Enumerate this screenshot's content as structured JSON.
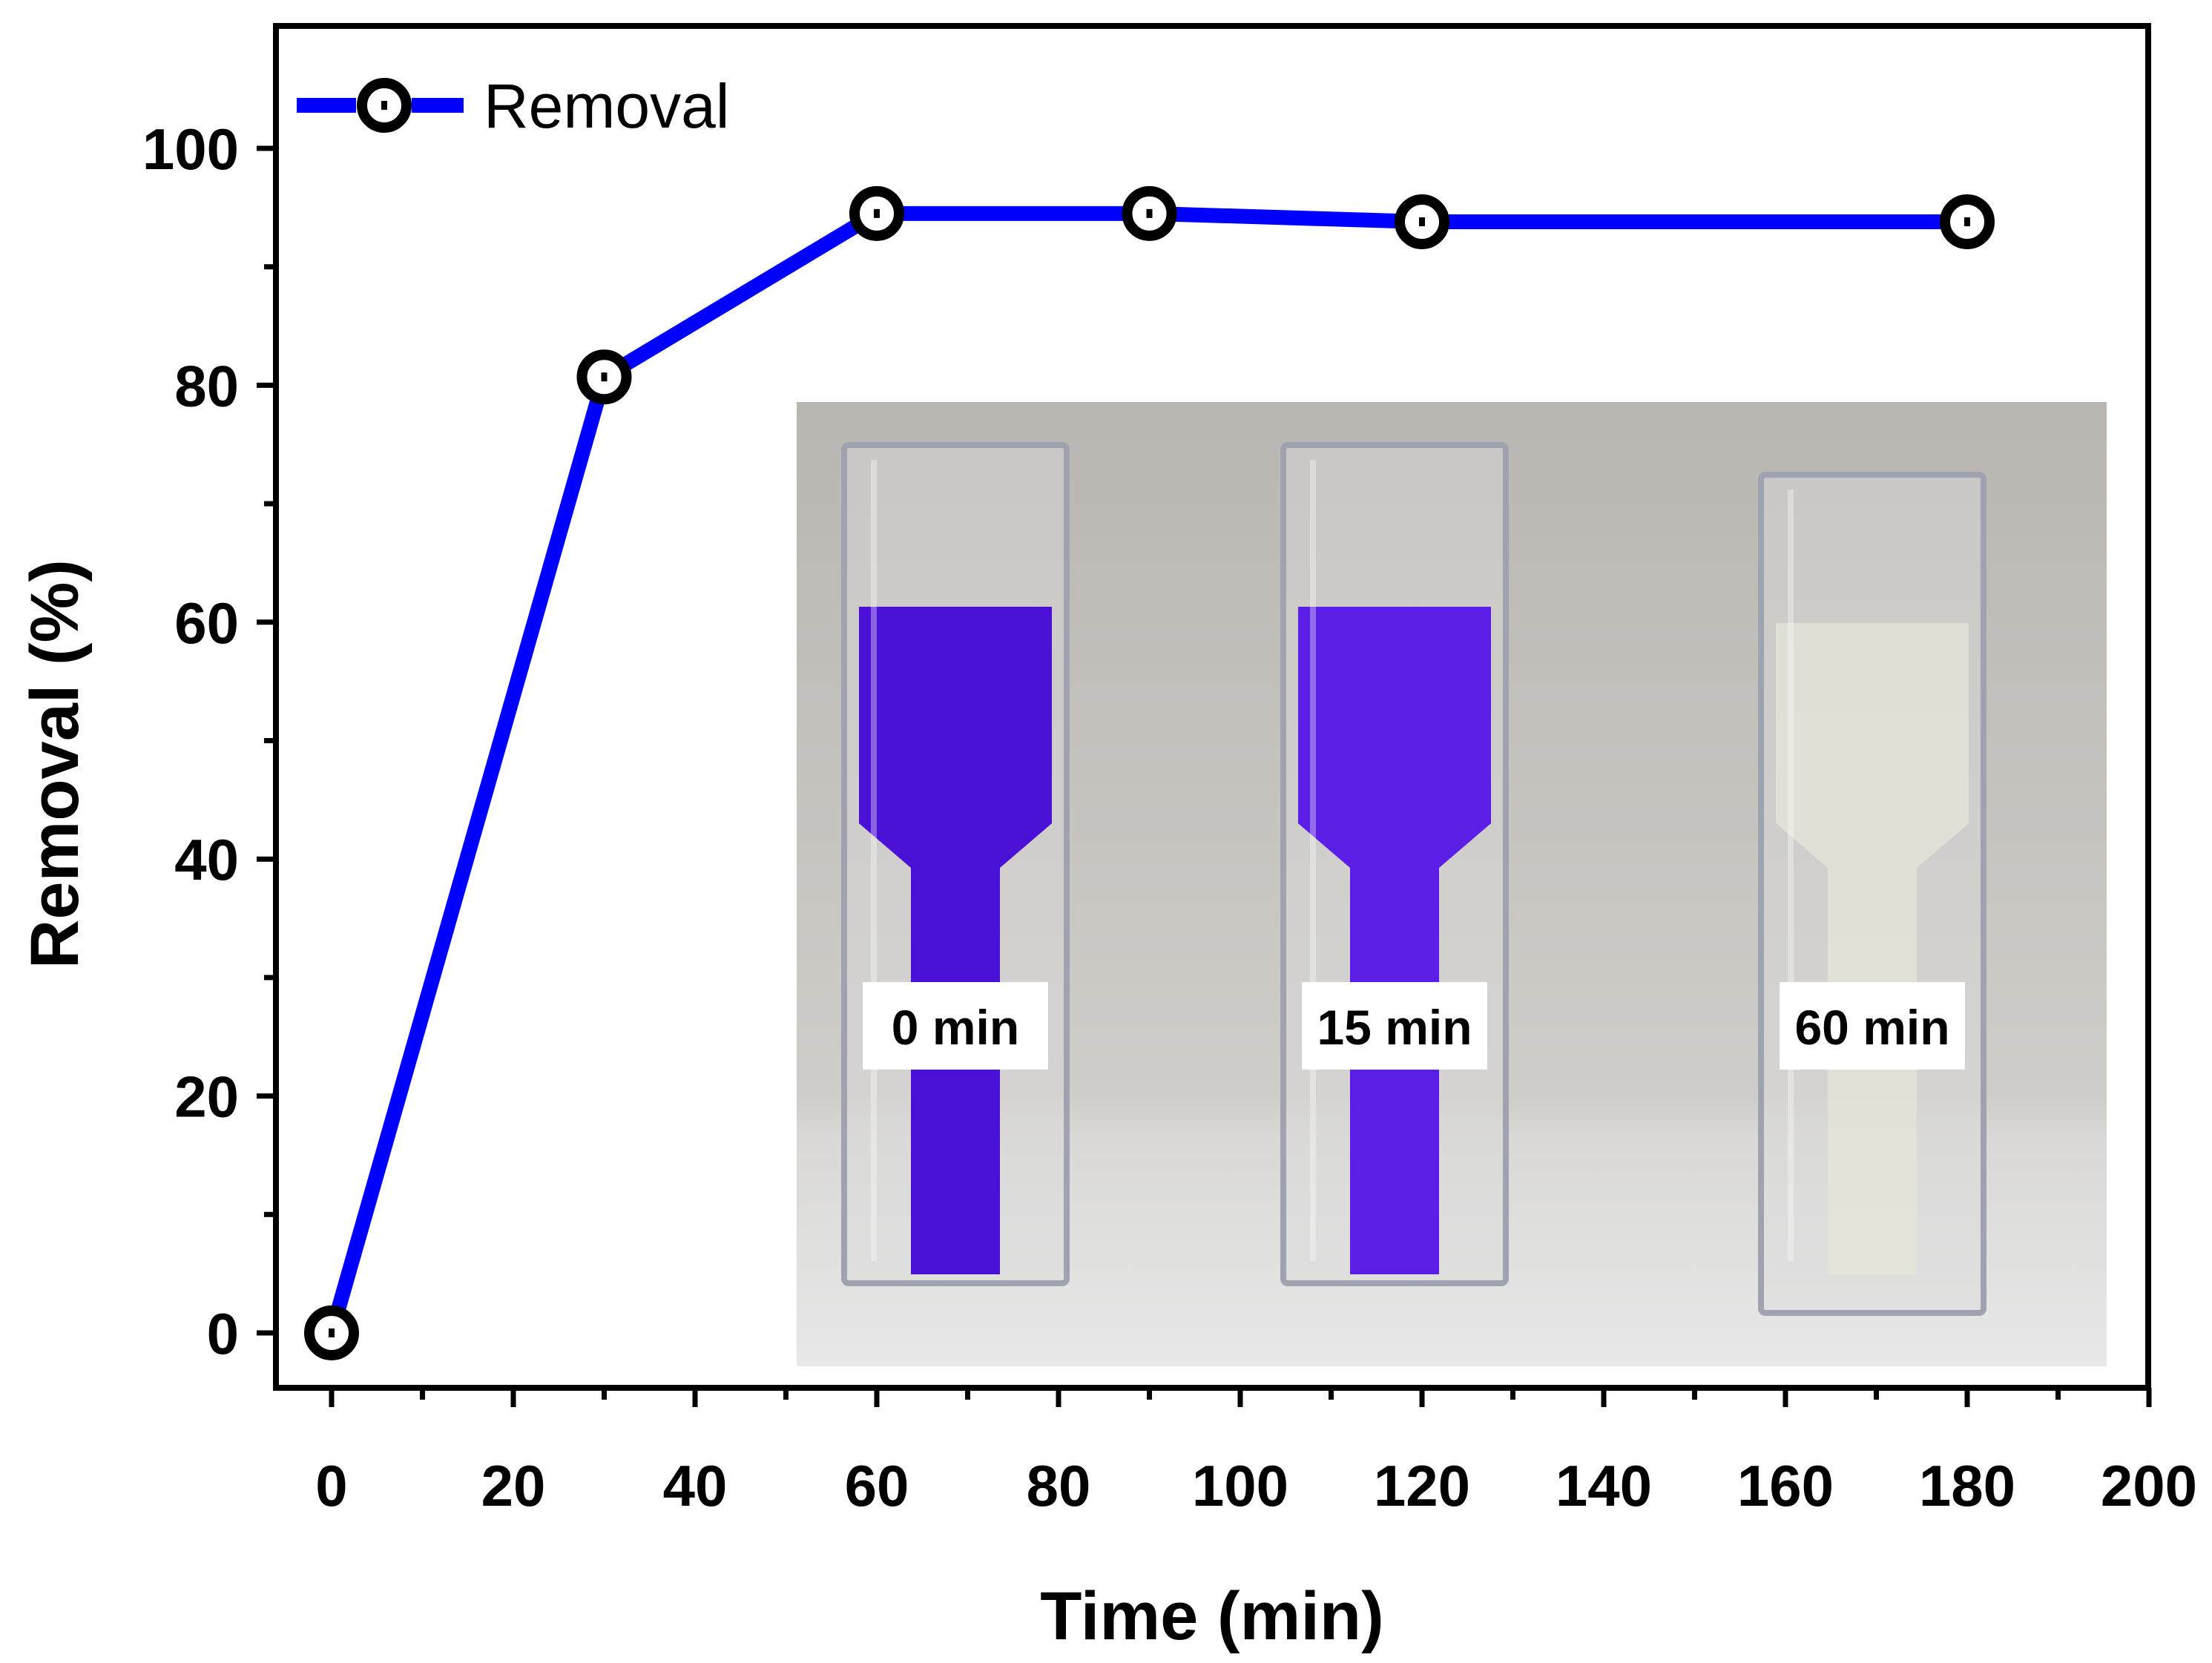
{
  "chart_data": {
    "type": "line",
    "xlabel": "Time (min)",
    "ylabel": "Removal (%)",
    "xlim": [
      -5,
      200
    ],
    "ylim": [
      -5,
      110
    ],
    "xticks": [
      0,
      20,
      40,
      60,
      80,
      100,
      120,
      140,
      160,
      180,
      200
    ],
    "yticks": [
      0,
      20,
      40,
      60,
      80,
      100
    ],
    "series": [
      {
        "name": "Removal",
        "color": "#0000ff",
        "x": [
          0,
          30,
          60,
          90,
          120,
          180
        ],
        "y": [
          0,
          80.7,
          94.5,
          94.5,
          93.8,
          93.8
        ]
      }
    ],
    "legend_position": "top-left",
    "grid": false
  },
  "inset": {
    "cuvettes": [
      {
        "label": "0 min",
        "liquid_color": "#4a10d6"
      },
      {
        "label": "15 min",
        "liquid_color": "#5a1ee6"
      },
      {
        "label": "60 min",
        "liquid_color": "#e6e6da"
      }
    ]
  }
}
